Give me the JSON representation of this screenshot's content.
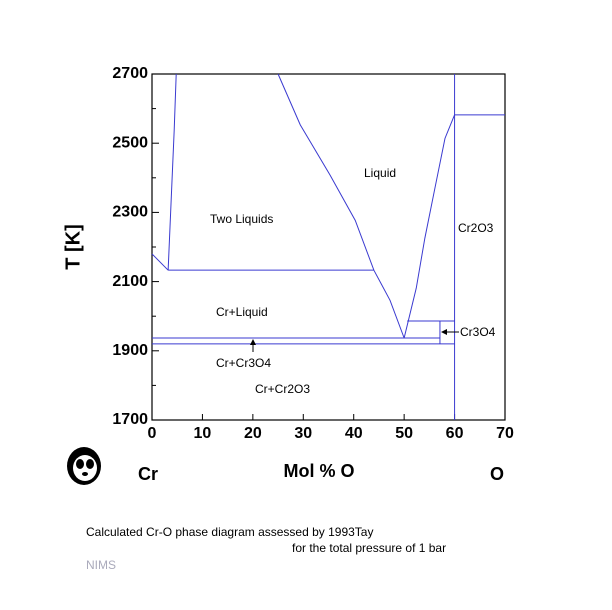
{
  "chart_data": {
    "type": "line",
    "ylabel": "T [K]",
    "xlabel": "Mol % O",
    "left_element": "Cr",
    "right_element": "O",
    "xlim": [
      0,
      70
    ],
    "xticks": [
      0,
      10,
      20,
      30,
      40,
      50,
      60,
      70
    ],
    "ylim": [
      1700,
      2700
    ],
    "yticks": [
      1700,
      1900,
      2100,
      2300,
      2500,
      2700
    ],
    "yminorticks": [
      1800,
      2000,
      2200,
      2400,
      2600
    ],
    "series": [
      {
        "color": "#3a3ad0",
        "x": [
          0,
          3.2
        ],
        "values": [
          2180,
          2133
        ]
      },
      {
        "color": "#3a3ad0",
        "x": [
          3.2,
          3.8,
          4.4,
          4.8
        ],
        "values": [
          2133,
          2335,
          2537,
          2700
        ]
      },
      {
        "color": "#3a3ad0",
        "x": [
          25,
          29.4,
          35.3,
          40.3,
          44,
          47.2,
          50
        ],
        "values": [
          2700,
          2553,
          2408,
          2277,
          2133,
          2046,
          1937
        ]
      },
      {
        "color": "#3a3ad0",
        "x": [
          50,
          52.4,
          54.1,
          56.1,
          58.1,
          60
        ],
        "values": [
          1937,
          2081,
          2225,
          2370,
          2514,
          2582
        ]
      },
      {
        "color": "#3a3ad0",
        "x": [
          3.2,
          44
        ],
        "values": [
          2133,
          2133
        ]
      },
      {
        "color": "#3a3ad0",
        "x": [
          0,
          57.1
        ],
        "values": [
          1937,
          1937
        ]
      },
      {
        "color": "#3a3ad0",
        "x": [
          0,
          60
        ],
        "values": [
          1920,
          1920
        ]
      },
      {
        "color": "#3a3ad0",
        "x": [
          50.6,
          60
        ],
        "values": [
          1986,
          1986
        ]
      },
      {
        "color": "#3a3ad0",
        "x": [
          57.1,
          57.1
        ],
        "values": [
          1920,
          1986
        ]
      },
      {
        "color": "#3a3ad0",
        "x": [
          60,
          60
        ],
        "values": [
          1700,
          2700
        ]
      },
      {
        "color": "#3a3ad0",
        "x": [
          60,
          70
        ],
        "values": [
          2582,
          2582
        ]
      }
    ],
    "annotations": [
      "Liquid",
      "Two Liquids",
      "Cr2O3",
      "Cr+Liquid",
      "Cr3O4",
      "Cr+Cr3O4",
      "Cr+Cr2O3"
    ]
  },
  "caption": {
    "line1": "Calculated Cr-O phase diagram assessed by 1993Tay",
    "line2": "for the total pressure of 1 bar",
    "source": "NIMS"
  }
}
